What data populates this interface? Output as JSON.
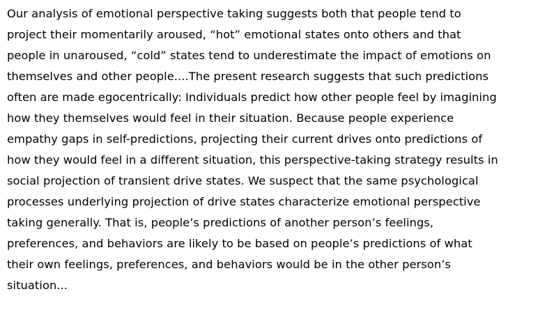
{
  "document": {
    "lines": [
      "Our analysis of emotional perspective taking suggests both that people tend to",
      "project their momentarily aroused, “hot” emotional states onto others and that",
      "people in unaroused, “cold” states tend to underestimate the impact of emotions on",
      "themselves and other people....The present research suggests that such predictions",
      "often are made egocentrically: Individuals predict how other people feel by imagining",
      "how they themselves would feel in their situation. Because people experience",
      "empathy gaps in self-predictions, projecting their current drives onto predictions of",
      "how they would feel in a different situation, this perspective-taking strategy results in",
      "social projection of transient drive states. We suspect that the same psychological",
      "processes underlying projection of drive states characterize emotional perspective",
      "taking generally. That is, people’s predictions of another person’s feelings,",
      "preferences, and behaviors are likely to be based on people’s predictions of what",
      "their own feelings, preferences, and behaviors would be in the other person’s",
      "situation..."
    ]
  }
}
